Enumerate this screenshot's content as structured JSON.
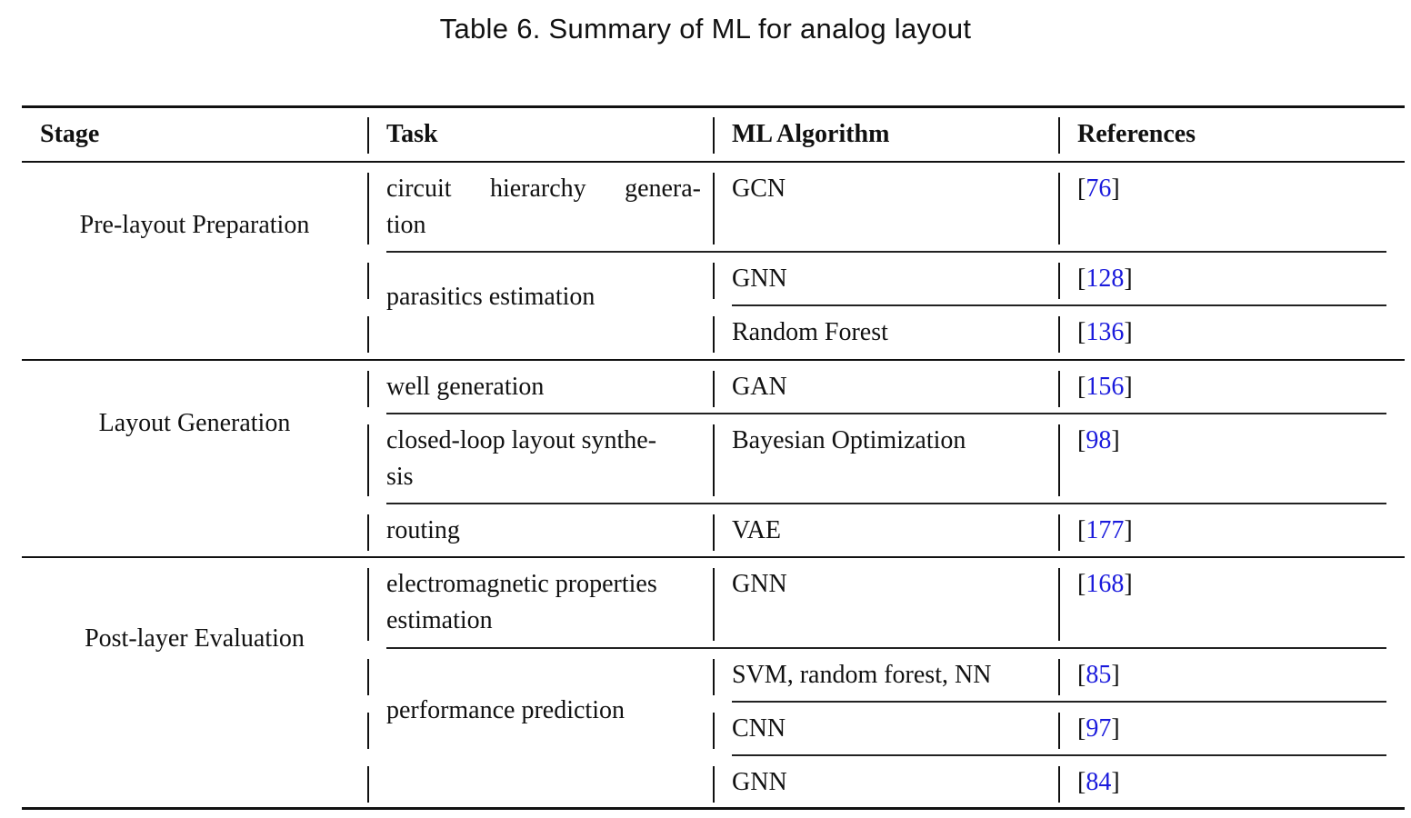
{
  "caption": "Table 6.  Summary of ML for analog layout",
  "headers": [
    "Stage",
    "Task",
    "ML Algorithm",
    "References"
  ],
  "stages": [
    "Pre-layout Preparation",
    "Layout Generation",
    "Post-layer Evaluation"
  ],
  "tasks": {
    "t1_line1_words": [
      "circuit",
      "hierarchy",
      "genera-"
    ],
    "t1_line2": "tion",
    "t2": "parasitics estimation",
    "t3": "well generation",
    "t4_line1": "closed-loop layout synthe-",
    "t4_line2": "sis",
    "t5": "routing",
    "t6_line1": "electromagnetic properties",
    "t6_line2": "estimation",
    "t7": "performance prediction"
  },
  "algorithms": [
    "GCN",
    "GNN",
    "Random Forest",
    "GAN",
    "Bayesian Optimization",
    "VAE",
    "GNN",
    "SVM, random forest, NN",
    "CNN",
    "GNN"
  ],
  "references": [
    "76",
    "128",
    "136",
    "156",
    "98",
    "177",
    "168",
    "85",
    "97",
    "84"
  ]
}
